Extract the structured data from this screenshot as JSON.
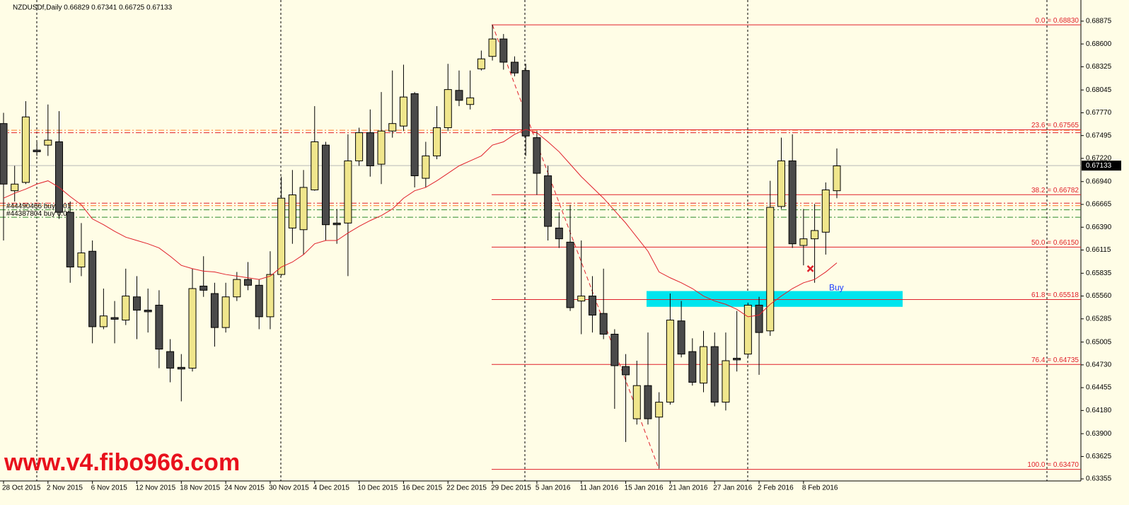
{
  "chart_data": {
    "type": "candlestick",
    "title": "NZDUSDf,Daily  0.66829 0.67341 0.66725 0.67133",
    "categories": [
      "28 Oct 2015",
      null,
      null,
      null,
      "2 Nov 2015",
      null,
      null,
      null,
      "6 Nov 2015",
      null,
      null,
      null,
      "12 Nov 2015",
      null,
      null,
      null,
      "18 Nov 2015",
      null,
      null,
      null,
      "24 Nov 2015",
      null,
      null,
      null,
      "30 Nov 2015",
      null,
      null,
      null,
      "4 Dec 2015",
      null,
      null,
      null,
      "10 Dec 2015",
      null,
      null,
      null,
      "16 Dec 2015",
      null,
      null,
      null,
      "22 Dec 2015",
      null,
      null,
      null,
      "29 Dec 2015",
      null,
      null,
      null,
      "5 Jan 2016",
      null,
      null,
      null,
      "11 Jan 2016",
      null,
      null,
      null,
      "15 Jan 2016",
      null,
      null,
      null,
      "21 Jan 2016",
      null,
      null,
      null,
      "27 Jan 2016",
      null,
      null,
      null,
      "2 Feb 2016",
      null,
      null,
      null,
      "8 Feb 2016",
      null,
      null,
      null
    ],
    "open": [
      0.6764,
      0.6683,
      0.6693,
      0.6732,
      0.6738,
      0.6742,
      0.6657,
      0.6591,
      0.661,
      0.6519,
      0.653,
      0.6527,
      0.6555,
      0.6539,
      0.6545,
      0.6489,
      0.647,
      0.6469,
      0.6568,
      0.6559,
      0.6518,
      0.6555,
      0.6576,
      0.6569,
      0.6531,
      0.6582,
      0.6638,
      0.6636,
      0.6684,
      0.6738,
      0.6644,
      0.6644,
      0.6719,
      0.6753,
      0.6715,
      0.6755,
      0.6761,
      0.68,
      0.6698,
      0.6725,
      0.6759,
      0.6804,
      0.6787,
      0.683,
      0.6845,
      0.6866,
      0.6838,
      0.6828,
      0.6747,
      0.6701,
      0.6638,
      0.6621,
      0.655,
      0.6556,
      0.6535,
      0.651,
      0.6471,
      0.6408,
      0.6448,
      0.641,
      0.6428,
      0.6526,
      0.6489,
      0.6451,
      0.6495,
      0.6428,
      0.6481,
      0.6486,
      0.6545,
      0.6514,
      0.6664,
      0.6719,
      0.6617,
      0.6625,
      0.6633,
      0.6683
    ],
    "high": [
      0.6777,
      0.6713,
      0.6791,
      0.6742,
      0.6787,
      0.6779,
      0.667,
      0.6644,
      0.6623,
      0.6565,
      0.655,
      0.6589,
      0.658,
      0.6565,
      0.6563,
      0.6504,
      0.6486,
      0.6589,
      0.6604,
      0.6572,
      0.6572,
      0.6585,
      0.6597,
      0.6576,
      0.661,
      0.67,
      0.6708,
      0.6708,
      0.6785,
      0.6742,
      0.6661,
      0.6751,
      0.6759,
      0.6781,
      0.6802,
      0.6828,
      0.6835,
      0.6802,
      0.6742,
      0.6785,
      0.6836,
      0.6828,
      0.6828,
      0.6852,
      0.6883,
      0.6872,
      0.6845,
      0.6836,
      0.6755,
      0.6713,
      0.6657,
      0.6666,
      0.6623,
      0.658,
      0.6589,
      0.6516,
      0.6486,
      0.6478,
      0.6512,
      0.644,
      0.6559,
      0.655,
      0.6505,
      0.6514,
      0.6512,
      0.6512,
      0.6538,
      0.6548,
      0.6555,
      0.6695,
      0.6747,
      0.6751,
      0.6661,
      0.6667,
      0.6693,
      0.6734
    ],
    "low": [
      0.6623,
      0.667,
      0.6691,
      0.6725,
      0.6725,
      0.6649,
      0.6572,
      0.658,
      0.6499,
      0.6516,
      0.6499,
      0.6521,
      0.6504,
      0.6512,
      0.6469,
      0.6452,
      0.6429,
      0.6465,
      0.6555,
      0.6495,
      0.6512,
      0.655,
      0.6563,
      0.6516,
      0.6516,
      0.658,
      0.6619,
      0.6606,
      0.6683,
      0.6623,
      0.6619,
      0.658,
      0.6713,
      0.67,
      0.6691,
      0.6747,
      0.6755,
      0.6687,
      0.6687,
      0.6721,
      0.6755,
      0.6785,
      0.6781,
      0.6828,
      0.684,
      0.6829,
      0.6821,
      0.6725,
      0.6678,
      0.6623,
      0.6614,
      0.6538,
      0.651,
      0.6512,
      0.6504,
      0.642,
      0.638,
      0.6401,
      0.6401,
      0.6348,
      0.6425,
      0.6482,
      0.6448,
      0.644,
      0.6423,
      0.6418,
      0.6465,
      0.6482,
      0.6461,
      0.6508,
      0.6661,
      0.6614,
      0.6593,
      0.6572,
      0.6606,
      0.6674
    ],
    "close": [
      0.6691,
      0.6691,
      0.6772,
      0.673,
      0.6744,
      0.6657,
      0.6591,
      0.6608,
      0.6519,
      0.6532,
      0.6528,
      0.6556,
      0.6539,
      0.6537,
      0.6492,
      0.6469,
      0.6468,
      0.6565,
      0.6563,
      0.6518,
      0.6555,
      0.6576,
      0.6569,
      0.6531,
      0.6582,
      0.6674,
      0.6678,
      0.6687,
      0.6742,
      0.6642,
      0.6642,
      0.6719,
      0.6753,
      0.6713,
      0.6755,
      0.6764,
      0.6796,
      0.6701,
      0.6725,
      0.6759,
      0.6805,
      0.6792,
      0.6795,
      0.6842,
      0.6866,
      0.6838,
      0.6825,
      0.6749,
      0.6704,
      0.664,
      0.6625,
      0.6542,
      0.6556,
      0.6533,
      0.651,
      0.6472,
      0.6461,
      0.6448,
      0.6408,
      0.6428,
      0.6527,
      0.6486,
      0.6452,
      0.6495,
      0.6428,
      0.6478,
      0.6479,
      0.6545,
      0.6512,
      0.6663,
      0.6719,
      0.6619,
      0.6625,
      0.6635,
      0.6684,
      0.6713
    ],
    "colors": {
      "up": "#f0e68c",
      "down": "#4a4a4a",
      "outline": "#000000"
    },
    "ma": {
      "color": "#e0202a",
      "values": [
        0.6674,
        0.668,
        0.6685,
        0.6691,
        0.6695,
        0.6687,
        0.6676,
        0.6666,
        0.6649,
        0.6642,
        0.6634,
        0.6627,
        0.6623,
        0.6619,
        0.6614,
        0.6604,
        0.6593,
        0.6589,
        0.6586,
        0.6585,
        0.6582,
        0.658,
        0.6578,
        0.6576,
        0.658,
        0.6591,
        0.6597,
        0.6606,
        0.6619,
        0.6623,
        0.6623,
        0.6632,
        0.664,
        0.6647,
        0.6653,
        0.6661,
        0.6674,
        0.6683,
        0.6687,
        0.6695,
        0.6704,
        0.6713,
        0.6719,
        0.6725,
        0.6738,
        0.6742,
        0.6751,
        0.6757,
        0.6753,
        0.6742,
        0.673,
        0.6715,
        0.67,
        0.6687,
        0.6674,
        0.6659,
        0.6644,
        0.6627,
        0.661,
        0.6585,
        0.6578,
        0.6572,
        0.6565,
        0.6556,
        0.655,
        0.6546,
        0.654,
        0.6531,
        0.6533,
        0.6546,
        0.6556,
        0.6565,
        0.6572,
        0.6576,
        0.6585,
        0.6596
      ]
    },
    "fib_color": "#e0202a",
    "fib_levels": [
      {
        "value": 0.6883,
        "label": "0.0 = 0.68830"
      },
      {
        "value": 0.67565,
        "label": "23.6 = 0.67565"
      },
      {
        "value": 0.66782,
        "label": "38.2 = 0.66782"
      },
      {
        "value": 0.6615,
        "label": "50.0 = 0.66150"
      },
      {
        "value": 0.65518,
        "label": "61.8 = 0.65518"
      },
      {
        "value": 0.64735,
        "label": "76.4 = 0.64735"
      },
      {
        "value": 0.6347,
        "label": "100.0 = 0.63470"
      }
    ],
    "trade_lines": [
      {
        "value": 0.6756,
        "color": "#ff7f27"
      },
      {
        "value": 0.6753,
        "color": "#e0202a"
      },
      {
        "value": 0.6668,
        "color": "#e0202a"
      },
      {
        "value": 0.6665,
        "color": "#ff7f27"
      },
      {
        "value": 0.666,
        "color": "#2e8b2e",
        "label": "#44490466 buy 0.01"
      },
      {
        "value": 0.6651,
        "color": "#2e8b2e",
        "label": "#44387804 buy 0.01"
      }
    ],
    "zone": {
      "range": [
        0.6543,
        0.6562
      ],
      "color": "#00e5ee",
      "label": "Buy",
      "label_color": "#1a3cff"
    },
    "marker": {
      "value": 0.6589,
      "color": "#e0202a"
    },
    "last_price": {
      "value": 0.67133,
      "label": "0.67133",
      "line_color": "#b8b8b8"
    },
    "watermark": "www.v4.fibo966.com",
    "ylim": [
      0.6333,
      0.6913
    ],
    "yticks": [
      {
        "value": 0.68875,
        "label": "0.68875"
      },
      {
        "value": 0.686,
        "label": "0.68600"
      },
      {
        "value": 0.68325,
        "label": "0.68325"
      },
      {
        "value": 0.68045,
        "label": "0.68045"
      },
      {
        "value": 0.6777,
        "label": "0.67770"
      },
      {
        "value": 0.67495,
        "label": "0.67495"
      },
      {
        "value": 0.6722,
        "label": "0.67220"
      },
      {
        "value": 0.6694,
        "label": "0.66940"
      },
      {
        "value": 0.66665,
        "label": "0.66665"
      },
      {
        "value": 0.6639,
        "label": "0.66390"
      },
      {
        "value": 0.66115,
        "label": "0.66115"
      },
      {
        "value": 0.65835,
        "label": "0.65835"
      },
      {
        "value": 0.6556,
        "label": "0.65560"
      },
      {
        "value": 0.65285,
        "label": "0.65285"
      },
      {
        "value": 0.65005,
        "label": "0.65005"
      },
      {
        "value": 0.6473,
        "label": "0.64730"
      },
      {
        "value": 0.64455,
        "label": "0.64455"
      },
      {
        "value": 0.6418,
        "label": "0.64180"
      },
      {
        "value": 0.639,
        "label": "0.63900"
      },
      {
        "value": 0.63625,
        "label": "0.63625"
      },
      {
        "value": 0.63355,
        "label": "0.63355"
      }
    ]
  }
}
